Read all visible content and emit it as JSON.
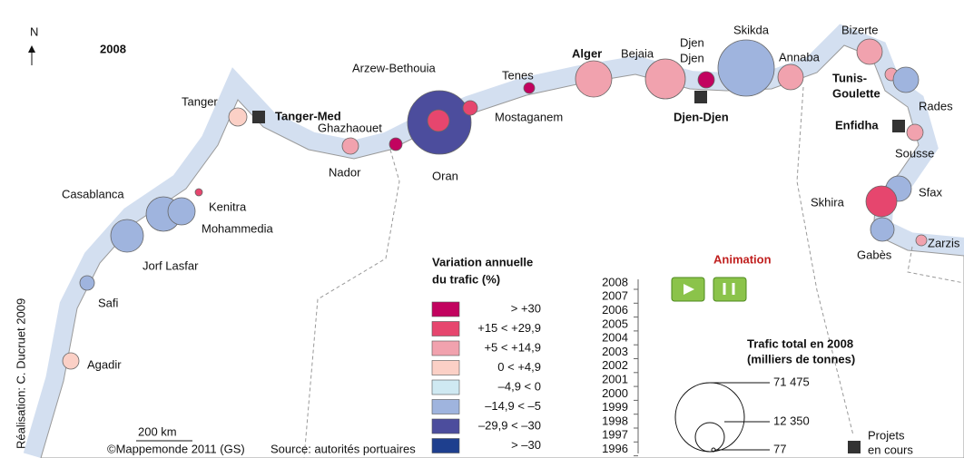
{
  "title": "2008",
  "north": "N",
  "ports": [
    {
      "name": "Agadir",
      "class": 3
    },
    {
      "name": "Safi",
      "class": 5
    },
    {
      "name": "Jorf Lasfar",
      "class": 5
    },
    {
      "name": "Casablanca",
      "class": 5
    },
    {
      "name": "Mohammedia",
      "class": 5
    },
    {
      "name": "Kenitra",
      "class": 1
    },
    {
      "name": "Tanger",
      "class": 3
    },
    {
      "name": "Nador",
      "class": 2
    },
    {
      "name": "Ghazhaouet",
      "class": 0
    },
    {
      "name": "Oran",
      "class": 6
    },
    {
      "name": "Tenes",
      "class": 0
    },
    {
      "name": "Alger",
      "class": 2
    },
    {
      "name": "Bejaia",
      "class": 2
    },
    {
      "name": [
        "Djen",
        "Djen"
      ],
      "class": 0
    },
    {
      "name": "Skikda",
      "class": 5
    },
    {
      "name": "Annaba",
      "class": 2
    },
    {
      "name": "Bizerte",
      "class": 2
    },
    {
      "name": [
        "Tunis-",
        "Goulette"
      ],
      "class": 2
    },
    {
      "name": "Rades",
      "class": 5
    },
    {
      "name": "Sousse",
      "class": 2
    },
    {
      "name": "Sfax",
      "class": 5
    },
    {
      "name": "Skhira",
      "class": 1
    },
    {
      "name": "Gabès",
      "class": 5
    },
    {
      "name": "Zarzis",
      "class": 2
    }
  ],
  "other_labels": [
    "Arzew-Bethouia",
    "Mostaganem"
  ],
  "new_ports": [
    "Tanger-Med",
    "Djen-Djen",
    "Enfidha"
  ],
  "legend": {
    "title": [
      "Variation annuelle",
      "du trafic (%)"
    ],
    "classes": [
      {
        "label": "> +30",
        "color": "#c2035f"
      },
      {
        "label": "+15 < +29,9",
        "color": "#e6466e"
      },
      {
        "label": "+5 < +14,9",
        "color": "#f1a2ae"
      },
      {
        "label": "0 < +4,9",
        "color": "#fbd0c6"
      },
      {
        "label": "–4,9 < 0",
        "color": "#cfe9f2"
      },
      {
        "label": "–14,9 < –5",
        "color": "#9fb4de"
      },
      {
        "label": "–29,9 < –30",
        "color": "#4c4d9d"
      },
      {
        "label": "> –30",
        "color": "#1e3f8e"
      }
    ]
  },
  "animation": {
    "title": "Animation",
    "years": [
      "2008",
      "2007",
      "2006",
      "2005",
      "2004",
      "2003",
      "2002",
      "2001",
      "2000",
      "1999",
      "1998",
      "1997",
      "1996"
    ]
  },
  "size_legend": {
    "title": [
      "Trafic total en 2008",
      "(milliers de tonnes)"
    ],
    "labels": [
      "71 475",
      "12 350",
      "77"
    ]
  },
  "projects": [
    "Projets",
    "en cours"
  ],
  "credits": {
    "author": "Réalisation: C. Ducruet 2009",
    "scale": "200 km",
    "copyright": "©Mappemonde 2011 (GS)",
    "source": "Source: autorités portuaires"
  }
}
